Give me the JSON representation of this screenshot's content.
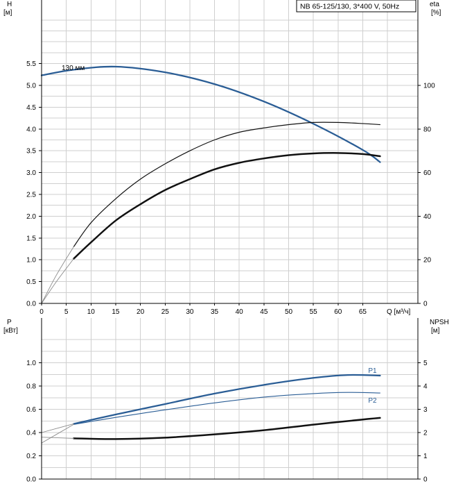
{
  "title": "NB 65-125/130, 3*400 V, 50Hz",
  "colors": {
    "blue": "#2a5d95",
    "black": "#111111",
    "thin_gray": "#8c8c8c",
    "grid": "#cfcfcf"
  },
  "chart_data": [
    {
      "id": "top",
      "type": "line",
      "xlabel": "Q [м³/ч]",
      "xlim": [
        0,
        70
      ],
      "x_ticks": [
        "0",
        "5",
        "10",
        "15",
        "20",
        "25",
        "30",
        "35",
        "40",
        "45",
        "50",
        "55",
        "60",
        "65"
      ],
      "left_axis": {
        "label": "H",
        "unit": "[м]",
        "ylim": [
          0,
          6.5
        ],
        "ticks": [
          "0.0",
          "0.5",
          "1.0",
          "1.5",
          "2.0",
          "2.5",
          "3.0",
          "3.5",
          "4.0",
          "4.5",
          "5.0",
          "5.5"
        ]
      },
      "right_axis": {
        "label": "eta",
        "unit": "[%]",
        "ylim": [
          0,
          130
        ],
        "ticks": [
          "0",
          "20",
          "40",
          "60",
          "80",
          "100"
        ]
      },
      "annotation": "130 мм",
      "series": [
        {
          "axis": "left",
          "style": "thick-blue",
          "x": [
            0,
            6.5,
            15,
            25,
            35,
            45,
            55,
            65,
            68.5
          ],
          "y": [
            5.23,
            5.36,
            5.43,
            5.3,
            5.03,
            4.63,
            4.12,
            3.52,
            3.24
          ]
        },
        {
          "axis": "right",
          "style": "thick-black",
          "x": [
            6.5,
            10,
            15,
            20,
            25,
            30,
            35,
            40,
            45,
            50,
            55,
            60,
            65,
            68.5
          ],
          "y": [
            20.5,
            28,
            38,
            45.5,
            52,
            57,
            61.5,
            64.5,
            66.5,
            68,
            68.8,
            69,
            68.5,
            67.5
          ]
        },
        {
          "axis": "right",
          "style": "thin-black",
          "x": [
            6.5,
            10,
            15,
            20,
            25,
            30,
            35,
            40,
            45,
            50,
            55,
            60,
            65,
            68.5
          ],
          "y": [
            26,
            37,
            48,
            57,
            64,
            70,
            75,
            78.5,
            80.5,
            82,
            83,
            83,
            82.5,
            82
          ]
        },
        {
          "axis": "right",
          "style": "thin-gray-ext",
          "x": [
            0,
            3,
            6.5
          ],
          "y": [
            0,
            10,
            20.5
          ]
        },
        {
          "axis": "right",
          "style": "thin-gray-ext",
          "x": [
            0,
            3,
            6.5
          ],
          "y": [
            0,
            13,
            26
          ]
        }
      ]
    },
    {
      "id": "bottom",
      "type": "line",
      "xlim": [
        0,
        70
      ],
      "left_axis": {
        "label": "P",
        "unit": "[кВт]",
        "ylim": [
          0,
          1.2
        ],
        "ticks": [
          "0.0",
          "0.2",
          "0.4",
          "0.6",
          "0.8",
          "1.0"
        ]
      },
      "right_axis": {
        "label": "NPSH",
        "unit": "[м]",
        "ylim": [
          0,
          6
        ],
        "ticks": [
          "0",
          "1",
          "2",
          "3",
          "4",
          "5"
        ]
      },
      "series": [
        {
          "name": "P1",
          "axis": "left",
          "style": "thick-blue",
          "x": [
            6.5,
            15,
            25,
            35,
            45,
            55,
            62,
            68.5
          ],
          "y": [
            0.475,
            0.555,
            0.645,
            0.735,
            0.81,
            0.87,
            0.895,
            0.89
          ]
        },
        {
          "name": "P2",
          "axis": "left",
          "style": "thin-blue",
          "x": [
            6.5,
            15,
            25,
            35,
            45,
            55,
            62,
            68.5
          ],
          "y": [
            0.47,
            0.53,
            0.595,
            0.655,
            0.705,
            0.735,
            0.745,
            0.74
          ]
        },
        {
          "axis": "left",
          "style": "thin-gray-ext",
          "x": [
            0,
            6.5
          ],
          "y": [
            0.4,
            0.475
          ]
        },
        {
          "axis": "left",
          "style": "thin-gray-ext",
          "x": [
            0,
            6.5
          ],
          "y": [
            0.31,
            0.47
          ]
        },
        {
          "axis": "right",
          "style": "thick-black",
          "x": [
            6.5,
            15,
            25,
            35,
            45,
            55,
            65,
            68.5
          ],
          "y": [
            1.75,
            1.72,
            1.78,
            1.92,
            2.1,
            2.34,
            2.56,
            2.63
          ]
        },
        {
          "axis": "right",
          "style": "thin-gray-ext",
          "x": [
            0,
            6.5
          ],
          "y": [
            1.8,
            1.75
          ]
        }
      ]
    }
  ]
}
